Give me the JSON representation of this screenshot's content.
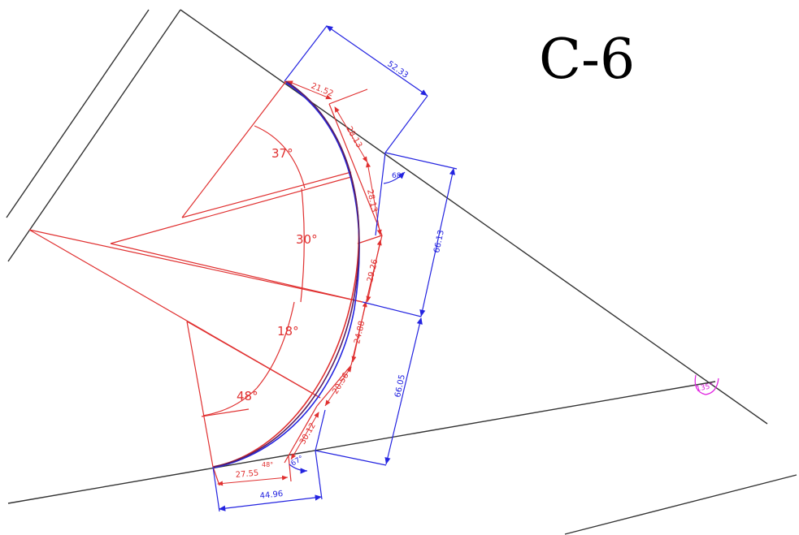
{
  "title": "C-6",
  "colors": {
    "black": "#333333",
    "red": "#e03030",
    "blue": "#2424e0",
    "magenta": "#e020e0",
    "curve": "#5a2060"
  },
  "angles": {
    "a1": "37°",
    "a2": "30°",
    "a3": "18°",
    "a4": "48°",
    "blue_top": "68°",
    "blue_bottom": "67°",
    "magenta": "135°",
    "small_red_bottom": "48°"
  },
  "red_dims": {
    "top": "21.52",
    "d1": "28.13",
    "d2": "28.13",
    "d3": "29.26",
    "d4": "24.88",
    "d5": "20.56",
    "d6": "30.12",
    "bottom": "27.55"
  },
  "blue_dims": {
    "top": "52.33",
    "right_upper": "66.13",
    "right_lower": "66.05",
    "bottom": "44.96"
  }
}
